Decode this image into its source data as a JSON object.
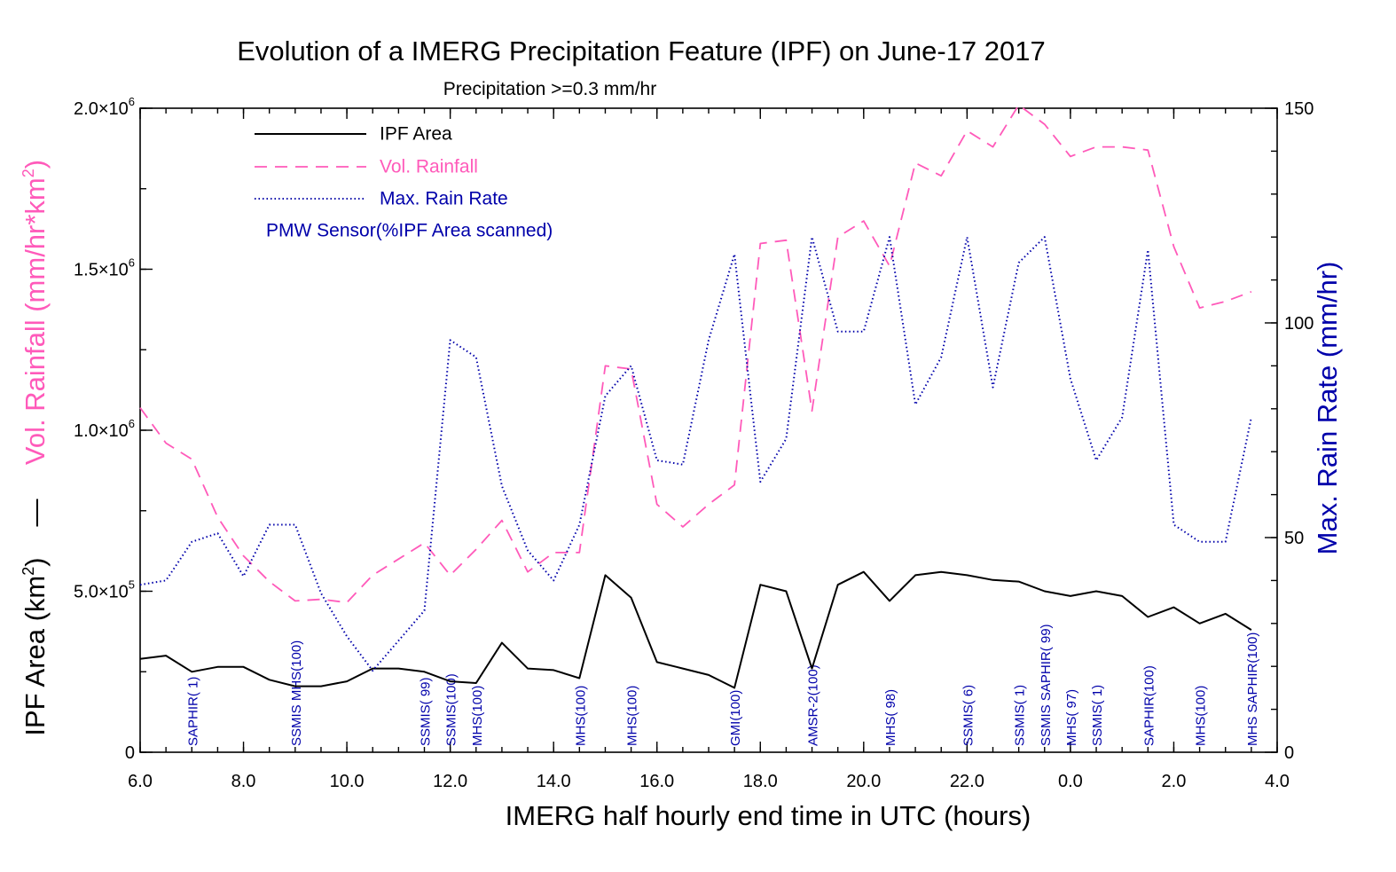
{
  "colors": {
    "ipf_area": "#000000",
    "vol_rainfall": "#ff5aba",
    "max_rain_rate": "#0000aa",
    "sensor": "#0000aa"
  },
  "chart_data": {
    "type": "line",
    "title": "Evolution of a IMERG Precipitation Feature (IPF) on June-17 2017",
    "subtitle": "Precipitation >=0.3 mm/hr",
    "xlabel": "IMERG half hourly end time in UTC (hours)",
    "ylabel_left_a": "Vol. Rainfall (mm/hr*km",
    "ylabel_left_b": "IPF Area (km",
    "ylabel_left_marker": "—",
    "ylabel_left_exp": "2",
    "ylabel_left_close": ")",
    "ylabel_right": "Max. Rain Rate (mm/hr)",
    "x_tick_labels": [
      "6.0",
      "8.0",
      "10.0",
      "12.0",
      "14.0",
      "16.0",
      "18.0",
      "20.0",
      "22.0",
      "0.0",
      "2.0",
      "4.0"
    ],
    "xlim": [
      6,
      28
    ],
    "y_left": {
      "ylim": [
        0,
        2000000
      ],
      "ticks": [
        {
          "value": 0,
          "mant": "0",
          "exp": ""
        },
        {
          "value": 500000,
          "mant": "5.0×10",
          "exp": "5"
        },
        {
          "value": 1000000,
          "mant": "1.0×10",
          "exp": "6"
        },
        {
          "value": 1500000,
          "mant": "1.5×10",
          "exp": "6"
        },
        {
          "value": 2000000,
          "mant": "2.0×10",
          "exp": "6"
        }
      ],
      "minor_step": 250000
    },
    "y_right": {
      "ylim": [
        0,
        150
      ],
      "tick_labels": [
        "0",
        "50",
        "100",
        "150"
      ],
      "tick_values": [
        0,
        50,
        100,
        150
      ],
      "minor_step": 10
    },
    "legend": {
      "placement": "top-left",
      "entries": [
        "IPF Area",
        "Vol. Rainfall",
        "Max. Rain Rate"
      ],
      "sensor_title": "PMW Sensor(%IPF Area scanned)"
    },
    "x": [
      6.0,
      6.5,
      7.0,
      7.5,
      8.0,
      8.5,
      9.0,
      9.5,
      10.0,
      10.5,
      11.0,
      11.5,
      12.0,
      12.5,
      13.0,
      13.5,
      14.0,
      14.5,
      15.0,
      15.5,
      16.0,
      16.5,
      17.0,
      17.5,
      18.0,
      18.5,
      19.0,
      19.5,
      20.0,
      20.5,
      21.0,
      21.5,
      22.0,
      22.5,
      23.0,
      23.5,
      24.0,
      24.5,
      25.0,
      25.5,
      26.0,
      26.5,
      27.0,
      27.5
    ],
    "series": [
      {
        "name": "IPF Area",
        "axis": "left",
        "values": [
          290000,
          300000,
          250000,
          265000,
          265000,
          225000,
          205000,
          205000,
          220000,
          260000,
          260000,
          250000,
          220000,
          215000,
          340000,
          260000,
          255000,
          230000,
          550000,
          480000,
          280000,
          260000,
          240000,
          200000,
          520000,
          500000,
          260000,
          520000,
          560000,
          470000,
          550000,
          560000,
          550000,
          535000,
          530000,
          500000,
          485000,
          500000,
          485000,
          420000,
          450000,
          400000,
          430000,
          380000
        ]
      },
      {
        "name": "Vol. Rainfall",
        "axis": "left",
        "values": [
          1070000,
          960000,
          910000,
          730000,
          610000,
          530000,
          470000,
          475000,
          465000,
          550000,
          600000,
          650000,
          550000,
          630000,
          720000,
          560000,
          620000,
          620000,
          1200000,
          1190000,
          770000,
          700000,
          770000,
          830000,
          1580000,
          1590000,
          1060000,
          1600000,
          1650000,
          1510000,
          1830000,
          1790000,
          1930000,
          1880000,
          2010000,
          1950000,
          1850000,
          1880000,
          1880000,
          1870000,
          1570000,
          1380000,
          1400000,
          1430000
        ]
      },
      {
        "name": "Max. Rain Rate",
        "axis": "right",
        "values": [
          39,
          40,
          49,
          51,
          41,
          53,
          53,
          37,
          27,
          19,
          26,
          33,
          96,
          92,
          62,
          47,
          40,
          53,
          83,
          90,
          68,
          67,
          96,
          116,
          63,
          73,
          120,
          98,
          98,
          120,
          81,
          92,
          120,
          85,
          114,
          120,
          87,
          68,
          78,
          117,
          53,
          49,
          49,
          78
        ]
      }
    ],
    "sensor_annotations": [
      {
        "x": 7.0,
        "text": "SAPHIR(  1)"
      },
      {
        "x": 9.0,
        "text": "SSMIS MHS(100)"
      },
      {
        "x": 11.5,
        "text": "SSMIS( 99)"
      },
      {
        "x": 12.0,
        "text": "SSMIS(100)"
      },
      {
        "x": 12.5,
        "text": "MHS(100)"
      },
      {
        "x": 14.5,
        "text": "MHS(100)"
      },
      {
        "x": 15.5,
        "text": "MHS(100)"
      },
      {
        "x": 17.5,
        "text": "GMI(100)"
      },
      {
        "x": 19.0,
        "text": "AMSR-2(100)"
      },
      {
        "x": 20.5,
        "text": "MHS( 98)"
      },
      {
        "x": 22.0,
        "text": "SSMIS(  6)"
      },
      {
        "x": 23.0,
        "text": "SSMIS(  1)"
      },
      {
        "x": 23.5,
        "text": "SSMIS SAPHIR( 99)"
      },
      {
        "x": 24.0,
        "text": "MHS( 97)"
      },
      {
        "x": 24.5,
        "text": "SSMIS(  1)"
      },
      {
        "x": 25.5,
        "text": "SAPHIR(100)"
      },
      {
        "x": 26.5,
        "text": "MHS(100)"
      },
      {
        "x": 27.5,
        "text": "MHS SAPHIR(100)"
      }
    ]
  }
}
